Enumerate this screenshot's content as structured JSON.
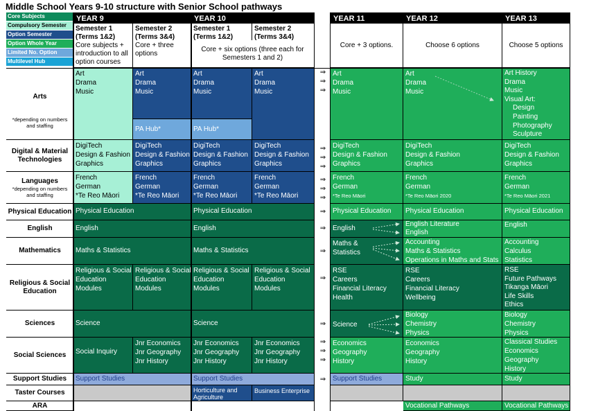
{
  "title": "Middle School Years 9-10 structure with Senior School pathways",
  "legend": [
    {
      "label": "Core Subjects",
      "color": "#a7f0d6"
    },
    {
      "label": "Compulsory Semester",
      "color": "#1e5c8e"
    },
    {
      "label": "Option Semester",
      "color": "#1f4e8c"
    },
    {
      "label": "Option Whole Year",
      "color": "#1fae5a"
    },
    {
      "label": "Limited No. Option",
      "color": "#6fa8dc"
    },
    {
      "label": "Multilevel Hub",
      "color": "#1aa3d6"
    }
  ],
  "years": {
    "y9": "YEAR 9",
    "y10": "YEAR 10",
    "y11": "YEAR 11",
    "y12": "YEAR 12",
    "y13": "YEAR 13"
  },
  "sub": {
    "s1": "Semester 1",
    "t12": "(Terms 1&2)",
    "s2": "Semester 2",
    "t34": "(Terms 3&4)",
    "y9s1_desc": "Core subjects + introduction to all option courses",
    "y9s2_desc": "Core + three options",
    "y10_desc": "Core + six options (three each for Semesters 1 and 2)",
    "y11_desc": "Core + 3 options.",
    "y12_desc": "Choose 6 options",
    "y13_desc": "Choose 5 options"
  },
  "rows": {
    "arts": "Arts",
    "arts_note": "*depending on numbers and staffing",
    "dmt": "Digital & Material Technologies",
    "lang": "Languages",
    "lang_note": "*depending on numbers and staffing",
    "pe": "Physical Education",
    "eng": "English",
    "math": "Mathematics",
    "rse": "Religious & Social Education",
    "sci": "Sciences",
    "soc": "Social Sciences",
    "sup": "Support Studies",
    "taster": "Taster Courses",
    "ara": "ARA"
  },
  "cells": {
    "art": "Art",
    "drama": "Drama",
    "music": "Music",
    "pahub": "PA Hub*",
    "digitech": "DigiTech",
    "dnf": "Design & Fashion",
    "graphics": "Graphics",
    "french": "French",
    "german": "German",
    "reo": "*Te Reo Māori",
    "reo20": "*Te Reo Māori 2020",
    "reo21": "*Te Reo Māori 2021",
    "pe": "Physical Education",
    "english": "English",
    "maths": "Maths & Statistics",
    "rse1": "Religious & Social",
    "rse2": "Education",
    "rse3": "Modules",
    "science": "Science",
    "social_inquiry": "Social Inquiry",
    "jecon": "Jnr Economics",
    "jgeo": "Jnr Geography",
    "jhist": "Jnr History",
    "support": "Support Studies",
    "hort": "Horticulture and Agriculture",
    "biz": "Business Enterprise",
    "y11_maths1": "Maths &",
    "y11_maths2": "Statistics",
    "rse_y11": [
      "RSE",
      "Careers",
      "Financial Literacy",
      "Health"
    ],
    "rse_y12": [
      "RSE",
      "Careers",
      "Financial Literacy",
      "Wellbeing"
    ],
    "rse_y13": [
      "RSE",
      "Future Pathways",
      "Tikanga Māori",
      "Life Skills",
      "Ethics"
    ],
    "econ": "Economics",
    "geo": "Geography",
    "hist": "History",
    "classical": "Classical Studies",
    "eng_lit": "English Literature",
    "accounting": "Accounting",
    "calculus": "Calculus",
    "statistics": "Statistics",
    "ops": "Operations in Maths and Stats",
    "biology": "Biology",
    "chemistry": "Chemistry",
    "physics": "Physics",
    "art_history": "Art History",
    "visual_art": "Visual Art:",
    "va": [
      "Design",
      "Painting",
      "Photography",
      "Sculpture"
    ],
    "study": "Study",
    "voc": "Vocational Pathways"
  },
  "arrow": "⇒"
}
